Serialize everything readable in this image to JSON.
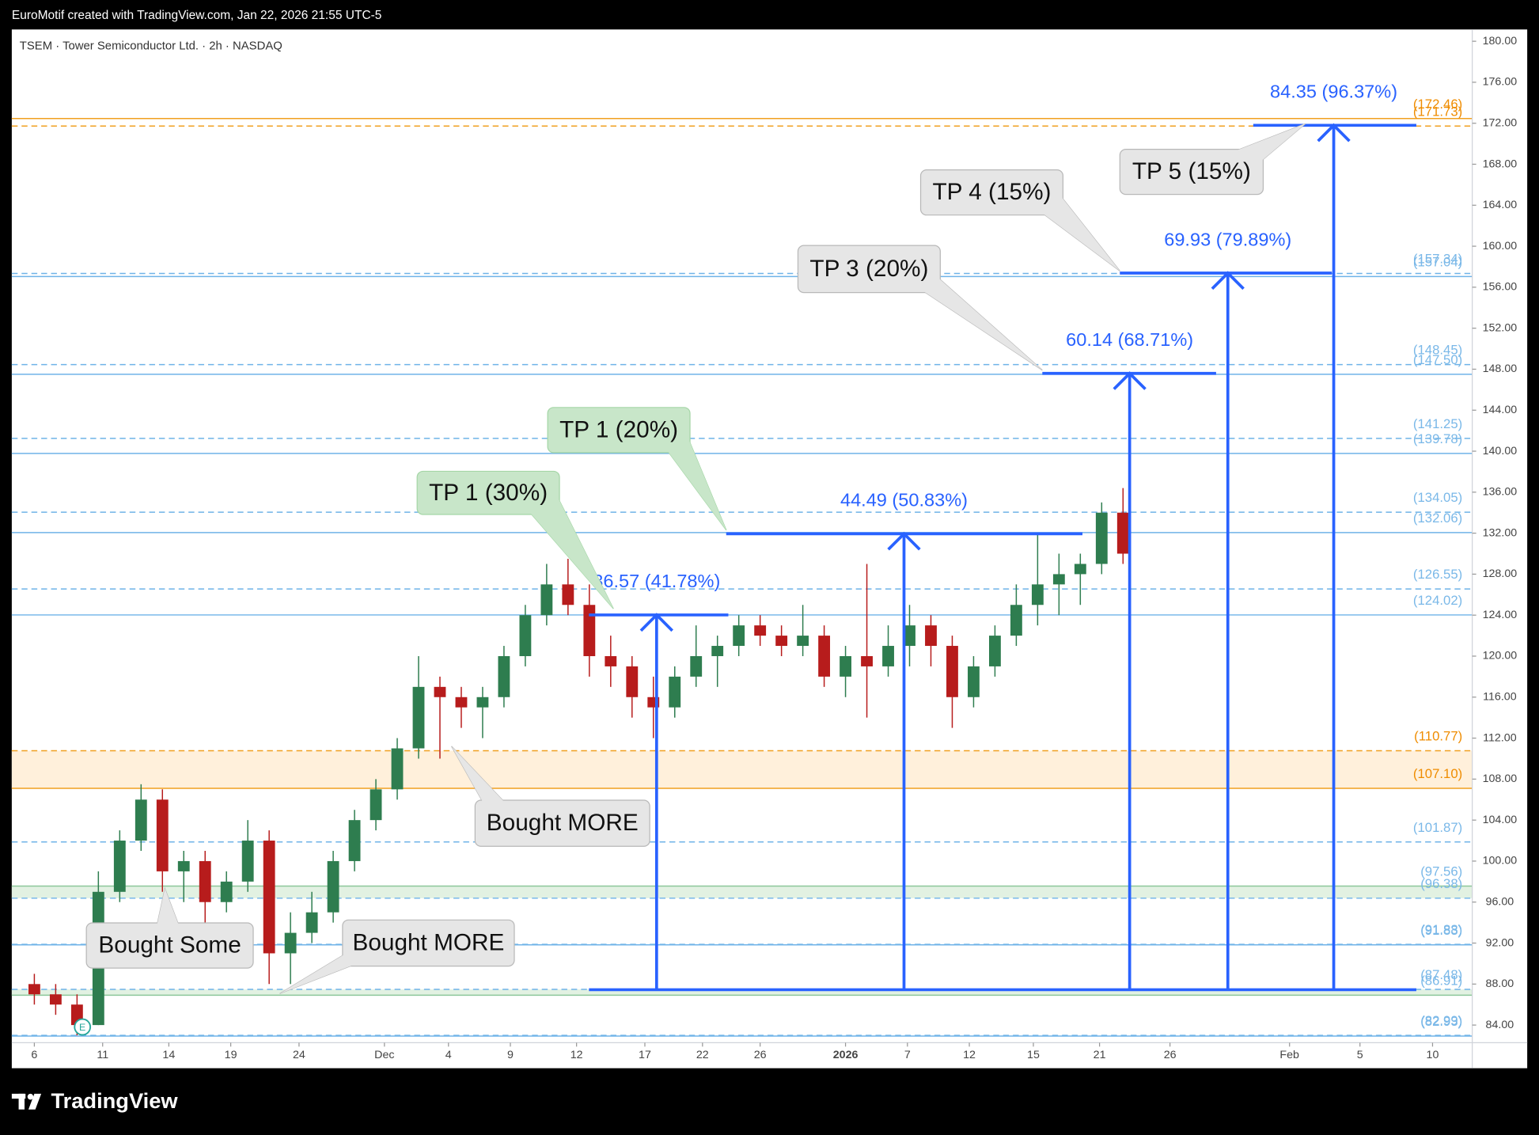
{
  "header": {
    "credit": "EuroMotif created with TradingView.com, Jan 22, 2026 21:55 UTC-5",
    "brand": "TradingView"
  },
  "chart_data": {
    "type": "candlestick",
    "title": "TSEM · Tower Semiconductor Ltd. · 2h · NASDAQ",
    "up_color": "#2e7d4f",
    "down_color": "#b71c1c",
    "open": [
      88,
      87,
      86,
      84,
      97,
      102,
      106,
      99,
      100,
      96,
      98,
      102,
      91,
      93,
      95,
      100,
      104,
      107,
      111,
      117,
      116,
      115,
      116,
      120,
      124,
      127,
      125,
      120,
      119,
      116,
      115,
      118,
      120,
      121,
      123,
      122,
      121,
      122,
      118,
      120,
      119,
      121,
      123,
      121,
      116,
      119,
      122,
      125,
      127,
      128,
      129,
      134
    ],
    "high": [
      89,
      88,
      87,
      99,
      103,
      107.5,
      107,
      101,
      101,
      99,
      104,
      103,
      95,
      97,
      101,
      105,
      108,
      112,
      120,
      118,
      117,
      117,
      121,
      125,
      129,
      129.5,
      127,
      122,
      120,
      118,
      119,
      123,
      122,
      124,
      124,
      123,
      125,
      123,
      121,
      129,
      123,
      125,
      124,
      122,
      120,
      123,
      127,
      132,
      130,
      130,
      135,
      136.4
    ],
    "low": [
      86,
      85,
      83,
      84,
      96,
      101,
      97,
      96,
      94,
      95,
      97,
      88,
      88,
      92,
      94,
      99,
      103,
      106,
      110,
      110,
      113,
      112,
      115,
      119,
      123,
      124,
      118,
      117,
      114,
      112,
      114,
      117,
      117,
      120,
      121,
      120,
      120,
      117,
      116,
      114,
      118,
      119,
      119,
      113,
      115,
      118,
      121,
      123,
      124,
      125,
      128,
      129
    ],
    "close": [
      87,
      86,
      84,
      97,
      102,
      106,
      99,
      100,
      96,
      98,
      102,
      91,
      93,
      95,
      100,
      104,
      107,
      111,
      117,
      116,
      115,
      116,
      120,
      124,
      127,
      125,
      120,
      119,
      116,
      115,
      118,
      120,
      121,
      123,
      122,
      121,
      122,
      118,
      120,
      119,
      121,
      123,
      121,
      116,
      119,
      122,
      125,
      127,
      128,
      129,
      134,
      130
    ],
    "xlim": [
      -1.057,
      67.36
    ],
    "xticks": [
      {
        "value": 0,
        "label": "6"
      },
      {
        "value": 3.2,
        "label": "11"
      },
      {
        "value": 6.3,
        "label": "14"
      },
      {
        "value": 9.2,
        "label": "19"
      },
      {
        "value": 12.4,
        "label": "24"
      },
      {
        "value": 16.4,
        "label": "Dec"
      },
      {
        "value": 19.4,
        "label": "4"
      },
      {
        "value": 22.3,
        "label": "9"
      },
      {
        "value": 25.4,
        "label": "12"
      },
      {
        "value": 28.6,
        "label": "17"
      },
      {
        "value": 31.3,
        "label": "22"
      },
      {
        "value": 34,
        "label": "26"
      },
      {
        "value": 38,
        "label": "2026"
      },
      {
        "value": 40.9,
        "label": "7"
      },
      {
        "value": 43.8,
        "label": "12"
      },
      {
        "value": 46.8,
        "label": "15"
      },
      {
        "value": 49.9,
        "label": "21"
      },
      {
        "value": 53.2,
        "label": "26"
      },
      {
        "value": 58.8,
        "label": "Feb"
      },
      {
        "value": 62.1,
        "label": "5"
      },
      {
        "value": 65.5,
        "label": "10"
      }
    ],
    "ylim": [
      82.28,
      181.15
    ],
    "yticks": [
      {
        "value": 84,
        "label": "84.00"
      },
      {
        "value": 88,
        "label": "88.00"
      },
      {
        "value": 92,
        "label": "92.00"
      },
      {
        "value": 96,
        "label": "96.00"
      },
      {
        "value": 100,
        "label": "100.00"
      },
      {
        "value": 104,
        "label": "104.00"
      },
      {
        "value": 108,
        "label": "108.00"
      },
      {
        "value": 112,
        "label": "112.00"
      },
      {
        "value": 116,
        "label": "116.00"
      },
      {
        "value": 120,
        "label": "120.00"
      },
      {
        "value": 124,
        "label": "124.00"
      },
      {
        "value": 128,
        "label": "128.00"
      },
      {
        "value": 132,
        "label": "132.00"
      },
      {
        "value": 136,
        "label": "136.00"
      },
      {
        "value": 140,
        "label": "140.00"
      },
      {
        "value": 144,
        "label": "144.00"
      },
      {
        "value": 148,
        "label": "148.00"
      },
      {
        "value": 152,
        "label": "152.00"
      },
      {
        "value": 156,
        "label": "156.00"
      },
      {
        "value": 160,
        "label": "160.00"
      },
      {
        "value": 164,
        "label": "164.00"
      },
      {
        "value": 168,
        "label": "168.00"
      },
      {
        "value": 172,
        "label": "172.00"
      },
      {
        "value": 176,
        "label": "176.00"
      },
      {
        "value": 180,
        "label": "180.00"
      }
    ],
    "zones": [
      {
        "from": 107.1,
        "to": 110.77,
        "color": "#fff0db"
      },
      {
        "from": 96.38,
        "to": 97.56,
        "color": "#e2f1e2"
      },
      {
        "from": 86.91,
        "to": 87.48,
        "color": "#e2f1e2"
      }
    ],
    "levels": [
      {
        "value": 172.46,
        "label": "(172.46)",
        "color": "#f0a020",
        "style": "solid"
      },
      {
        "value": 171.73,
        "label": "(171.73)",
        "color": "#f0a020",
        "style": "dashed"
      },
      {
        "value": 157.34,
        "label": "(157.34)",
        "color": "#6fb3e8",
        "style": "dashed"
      },
      {
        "value": 157.04,
        "label": "(157.04)",
        "color": "#6fb3e8",
        "style": "solid"
      },
      {
        "value": 148.45,
        "label": "(148.45)",
        "color": "#6fb3e8",
        "style": "dashed"
      },
      {
        "value": 147.5,
        "label": "(147.50)",
        "color": "#6fb3e8",
        "style": "solid"
      },
      {
        "value": 141.25,
        "label": "(141.25)",
        "color": "#6fb3e8",
        "style": "dashed"
      },
      {
        "value": 139.78,
        "label": "(139.78)",
        "color": "#6fb3e8",
        "style": "solid"
      },
      {
        "value": 134.05,
        "label": "(134.05)",
        "color": "#6fb3e8",
        "style": "dashed"
      },
      {
        "value": 132.06,
        "label": "(132.06)",
        "color": "#6fb3e8",
        "style": "solid"
      },
      {
        "value": 126.55,
        "label": "(126.55)",
        "color": "#6fb3e8",
        "style": "dashed"
      },
      {
        "value": 124.02,
        "label": "(124.02)",
        "color": "#6fb3e8",
        "style": "solid"
      },
      {
        "value": 110.77,
        "label": "(110.77)",
        "color": "#f0a020",
        "style": "dashed"
      },
      {
        "value": 107.1,
        "label": "(107.10)",
        "color": "#f0a020",
        "style": "solid"
      },
      {
        "value": 101.87,
        "label": "(101.87)",
        "color": "#6fb3e8",
        "style": "dashed"
      },
      {
        "value": 97.56,
        "label": "(97.56)",
        "color": "#8cc79a",
        "style": "solid"
      },
      {
        "value": 96.38,
        "label": "(96.38)",
        "color": "#6fb3e8",
        "style": "dashed"
      },
      {
        "value": 91.88,
        "label": "(91.88)",
        "color": "#6fb3e8",
        "style": "dashed"
      },
      {
        "value": 91.83,
        "label": "(91.83)",
        "color": "#6fb3e8",
        "style": "solid"
      },
      {
        "value": 87.48,
        "label": "(87.48)",
        "color": "#6fb3e8",
        "style": "dashed"
      },
      {
        "value": 86.91,
        "label": "(86.91)",
        "color": "#8cc79a",
        "style": "solid"
      },
      {
        "value": 82.99,
        "label": "(82.99)",
        "color": "#6fb3e8",
        "style": "dashed"
      },
      {
        "value": 82.93,
        "label": "(82.93)",
        "color": "#6fb3e8",
        "style": "solid"
      }
    ],
    "projection": {
      "base": 87.45,
      "base_start": 25.98,
      "base_end": 64.74,
      "color": "#2962ff",
      "targets": [
        {
          "change": 36.57,
          "percent": 41.78,
          "label": "36.57 (41.78%)",
          "x": 29.15,
          "x_start": 25.98,
          "x_end": 32.51
        },
        {
          "change": 44.49,
          "percent": 50.83,
          "label": "44.49 (50.83%)",
          "x": 40.74,
          "x_start": 32.41,
          "x_end": 49.1
        },
        {
          "change": 60.14,
          "percent": 68.71,
          "label": "60.14 (68.71%)",
          "x": 51.31,
          "x_start": 47.22,
          "x_end": 55.36
        },
        {
          "change": 69.93,
          "percent": 79.89,
          "label": "69.93 (79.89%)",
          "x": 55.91,
          "x_start": 50.85,
          "x_end": 60.78
        },
        {
          "change": 84.35,
          "percent": 96.37,
          "label": "84.35 (96.37%)",
          "x": 60.87,
          "x_start": 57.1,
          "x_end": 64.74
        }
      ]
    },
    "callouts": [
      {
        "text": "TP 1 (30%)",
        "style": "green"
      },
      {
        "text": "TP 1 (20%)",
        "style": "green"
      },
      {
        "text": "TP 3 (20%)",
        "style": "gray"
      },
      {
        "text": "TP 4 (15%)",
        "style": "gray"
      },
      {
        "text": "TP 5 (15%)",
        "style": "gray"
      },
      {
        "text": "Bought MORE",
        "style": "gray"
      },
      {
        "text": "Bought Some",
        "style": "gray"
      },
      {
        "text": "Bought MORE",
        "style": "gray"
      }
    ],
    "earnings": "E"
  }
}
